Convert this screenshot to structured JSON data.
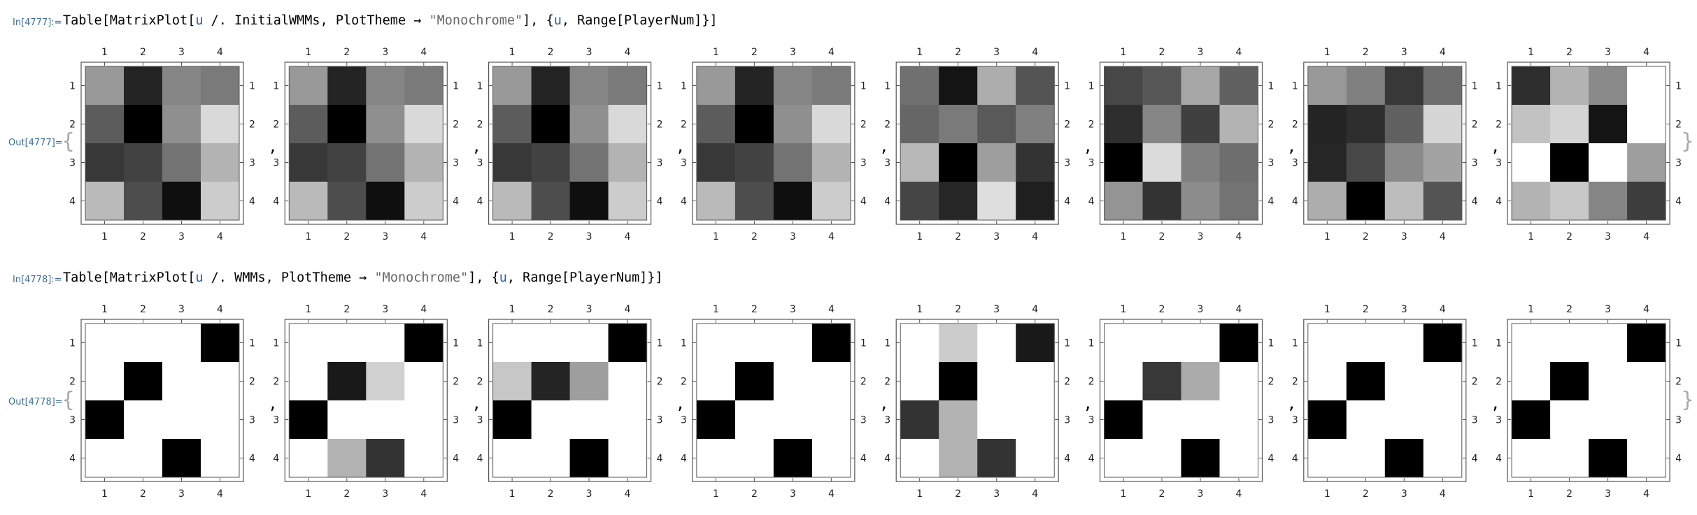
{
  "cells": [
    {
      "in_label": "In[4777]:=",
      "out_label": "Out[4777]=",
      "code": {
        "prefix": "Table[MatrixPlot[",
        "var1": "u",
        "mid": " /. InitialWMMs, PlotTheme → ",
        "str": "\"Monochrome\"",
        "mid2": "], {",
        "var2": "u",
        "suffix": ", Range[PlayerNum]}]"
      }
    },
    {
      "in_label": "In[4778]:=",
      "out_label": "Out[4778]=",
      "code": {
        "prefix": "Table[MatrixPlot[",
        "var1": "u",
        "mid": " /. WMMs, PlotTheme → ",
        "str": "\"Monochrome\"",
        "mid2": "], {",
        "var2": "u",
        "suffix": ", Range[PlayerNum]}]"
      }
    }
  ],
  "separator": ",",
  "brace_open": "{",
  "brace_close": "}",
  "tick_labels": [
    "1",
    "2",
    "3",
    "4"
  ],
  "chart_data": [
    {
      "type": "heatmap",
      "title": "",
      "theme": "Monochrome",
      "color_scale": "grayscale 0=white, 1=black",
      "axes": {
        "rows": [
          "1",
          "2",
          "3",
          "4"
        ],
        "cols": [
          "1",
          "2",
          "3",
          "4"
        ]
      },
      "matrices": [
        [
          [
            0.4,
            0.86,
            0.48,
            0.52
          ],
          [
            0.64,
            1.0,
            0.44,
            0.15
          ],
          [
            0.78,
            0.74,
            0.55,
            0.3
          ],
          [
            0.27,
            0.7,
            0.94,
            0.2
          ]
        ],
        [
          [
            0.4,
            0.86,
            0.48,
            0.52
          ],
          [
            0.64,
            1.0,
            0.44,
            0.15
          ],
          [
            0.78,
            0.74,
            0.55,
            0.3
          ],
          [
            0.27,
            0.7,
            0.94,
            0.2
          ]
        ],
        [
          [
            0.4,
            0.86,
            0.48,
            0.52
          ],
          [
            0.64,
            1.0,
            0.44,
            0.15
          ],
          [
            0.78,
            0.74,
            0.55,
            0.3
          ],
          [
            0.27,
            0.7,
            0.94,
            0.2
          ]
        ],
        [
          [
            0.4,
            0.86,
            0.48,
            0.52
          ],
          [
            0.64,
            1.0,
            0.44,
            0.15
          ],
          [
            0.78,
            0.74,
            0.55,
            0.3
          ],
          [
            0.27,
            0.7,
            0.94,
            0.2
          ]
        ],
        [
          [
            0.56,
            0.92,
            0.32,
            0.67
          ],
          [
            0.6,
            0.52,
            0.65,
            0.5
          ],
          [
            0.28,
            1.0,
            0.38,
            0.8
          ],
          [
            0.73,
            0.85,
            0.13,
            0.88
          ]
        ],
        [
          [
            0.72,
            0.66,
            0.35,
            0.62
          ],
          [
            0.82,
            0.48,
            0.75,
            0.3
          ],
          [
            1.0,
            0.14,
            0.5,
            0.57
          ],
          [
            0.42,
            0.8,
            0.45,
            0.55
          ]
        ],
        [
          [
            0.4,
            0.5,
            0.78,
            0.57
          ],
          [
            0.86,
            0.82,
            0.62,
            0.16
          ],
          [
            0.85,
            0.72,
            0.46,
            0.36
          ],
          [
            0.32,
            1.0,
            0.26,
            0.67
          ]
        ],
        [
          [
            0.82,
            0.3,
            0.46,
            0.0
          ],
          [
            0.24,
            0.17,
            0.92,
            0.0
          ],
          [
            0.0,
            1.0,
            0.0,
            0.38
          ],
          [
            0.3,
            0.22,
            0.48,
            0.76
          ]
        ]
      ]
    },
    {
      "type": "heatmap",
      "title": "",
      "theme": "Monochrome",
      "color_scale": "grayscale 0=white, 1=black",
      "axes": {
        "rows": [
          "1",
          "2",
          "3",
          "4"
        ],
        "cols": [
          "1",
          "2",
          "3",
          "4"
        ]
      },
      "matrices": [
        [
          [
            0,
            0,
            0,
            1
          ],
          [
            0,
            1,
            0,
            0
          ],
          [
            1,
            0,
            0,
            0
          ],
          [
            0,
            0,
            1,
            0
          ]
        ],
        [
          [
            0,
            0,
            0,
            1
          ],
          [
            0,
            0.9,
            0.18,
            0
          ],
          [
            1,
            0,
            0,
            0
          ],
          [
            0,
            0.3,
            0.8,
            0
          ]
        ],
        [
          [
            0,
            0,
            0,
            1
          ],
          [
            0.22,
            0.86,
            0.38,
            0
          ],
          [
            1,
            0,
            0,
            0
          ],
          [
            0,
            0,
            1,
            0
          ]
        ],
        [
          [
            0,
            0,
            0,
            1
          ],
          [
            0,
            1,
            0,
            0
          ],
          [
            1,
            0,
            0,
            0
          ],
          [
            0,
            0,
            1,
            0
          ]
        ],
        [
          [
            0,
            0.2,
            0,
            0.9
          ],
          [
            0,
            1,
            0,
            0
          ],
          [
            0.8,
            0.3,
            0,
            0
          ],
          [
            0,
            0.3,
            0.8,
            0
          ]
        ],
        [
          [
            0,
            0,
            0,
            1
          ],
          [
            0,
            0.78,
            0.33,
            0
          ],
          [
            1,
            0,
            0,
            0
          ],
          [
            0,
            0,
            1,
            0
          ]
        ],
        [
          [
            0,
            0,
            0,
            1
          ],
          [
            0,
            1,
            0,
            0
          ],
          [
            1,
            0,
            0,
            0
          ],
          [
            0,
            0,
            1,
            0
          ]
        ],
        [
          [
            0,
            0,
            0,
            1
          ],
          [
            0,
            1,
            0,
            0
          ],
          [
            1,
            0,
            0,
            0
          ],
          [
            0,
            0,
            1,
            0
          ]
        ]
      ]
    }
  ]
}
